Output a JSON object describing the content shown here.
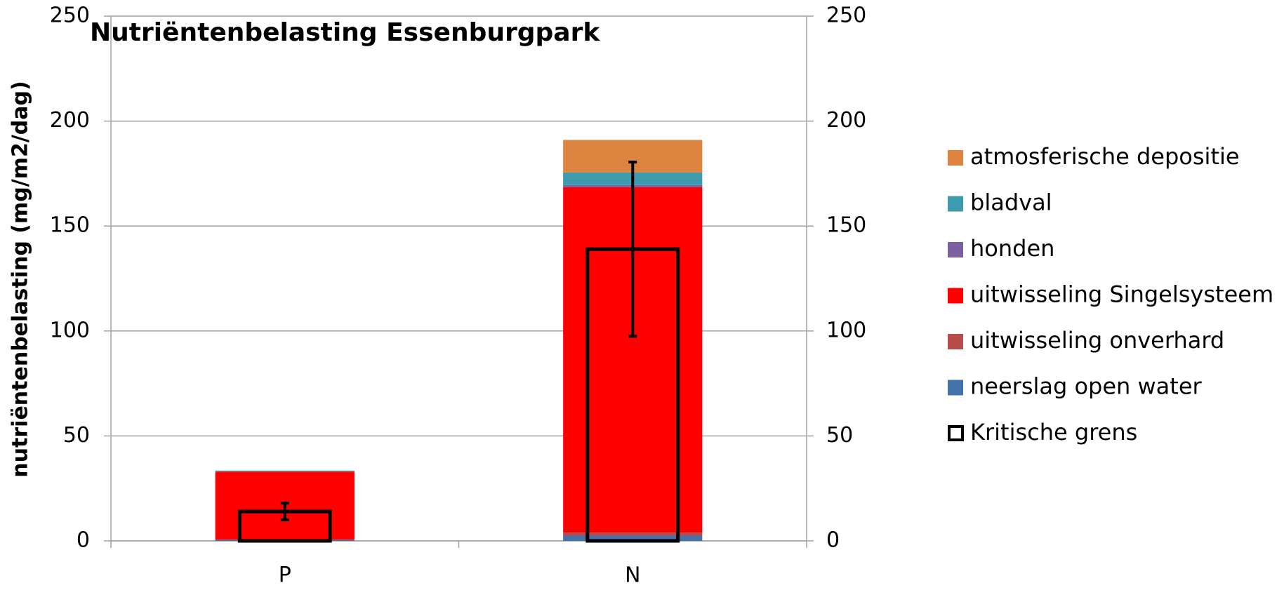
{
  "chart_data": {
    "type": "stacked_bar",
    "title": "Nutriëntenbelasting Essenburgpark",
    "y_label": "nutriëntenbelasting (mg/m2/dag)",
    "categories": [
      "P",
      "N"
    ],
    "series": [
      {
        "name": "neerslag open water",
        "color": "#4472aa",
        "values": [
          0.5,
          2.5
        ]
      },
      {
        "name": "uitwisseling onverhard",
        "color": "#b84c4c",
        "values": [
          0.2,
          1.5
        ]
      },
      {
        "name": "uitwisseling Singelsysteem",
        "color": "#ff0000",
        "values": [
          32.3,
          164.5
        ]
      },
      {
        "name": "honden",
        "color": "#7b5fa0",
        "values": [
          0,
          1
        ]
      },
      {
        "name": "bladval",
        "color": "#3e9aad",
        "values": [
          0.5,
          6
        ]
      },
      {
        "name": "atmosferische depositie",
        "color": "#dd8540",
        "values": [
          0,
          15.5
        ]
      }
    ],
    "critical": {
      "name": "Kritische grens",
      "color": "#000000",
      "values": [
        14,
        139
      ],
      "errors": [
        4,
        41.5
      ]
    },
    "ylim": [
      0,
      250
    ],
    "yticks": [
      0,
      50,
      100,
      150,
      200,
      250
    ],
    "y2lim": [
      0,
      250
    ],
    "y2ticks": [
      0,
      50,
      100,
      150,
      200,
      250
    ],
    "grid": true
  }
}
